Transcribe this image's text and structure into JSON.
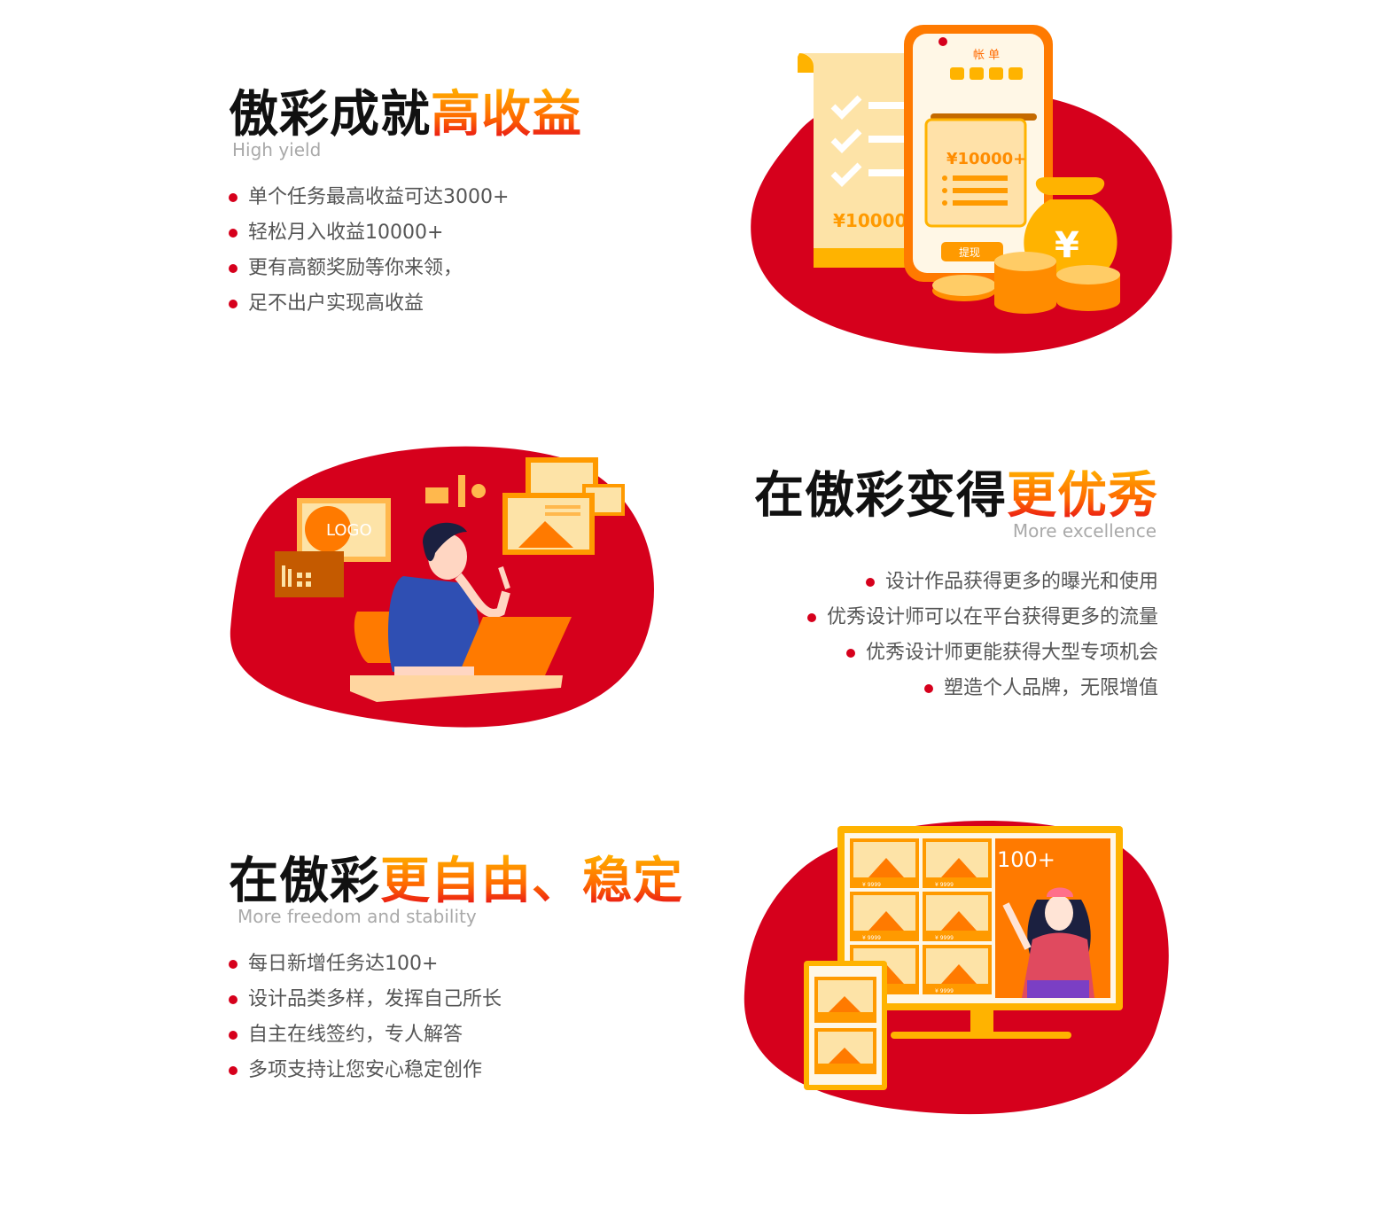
{
  "sections": [
    {
      "title_main": "傲彩成就",
      "title_highlight": "高收益",
      "subtitle": "High yield",
      "bullets": [
        "单个任务最高收益可达3000+",
        "轻松月入收益10000+",
        "更有高额奖励等你来领，",
        "足不出户实现高收益"
      ],
      "illustration": {
        "bill_label": "帐 单",
        "amount_card": "¥10000+",
        "amount_receipt": "¥10000",
        "withdraw_button": "提现",
        "bag_symbol": "¥"
      }
    },
    {
      "title_main": "在傲彩变得",
      "title_highlight": "更优秀",
      "subtitle": "More  excellence",
      "bullets": [
        "设计作品获得更多的曝光和使用",
        "优秀设计师可以在平台获得更多的流量",
        "优秀设计师更能获得大型专项机会",
        "塑造个人品牌，无限增值"
      ],
      "illustration": {
        "logo_text": "LOGO"
      }
    },
    {
      "title_main": "在傲彩",
      "title_highlight": "更自由、稳定",
      "subtitle": "More freedom and stability",
      "bullets": [
        "每日新增任务达100+",
        "设计品类多样，发挥自己所长",
        "自主在线签约，专人解答",
        "多项支持让您安心稳定创作"
      ],
      "illustration": {
        "counter_text": "100+",
        "tile_price": "¥ 9999"
      }
    }
  ],
  "colors": {
    "accent_red": "#d6001c",
    "accent_orange": "#ff7a00",
    "accent_yellow": "#ffb300",
    "subtitle_gray": "#a9a9a9"
  }
}
